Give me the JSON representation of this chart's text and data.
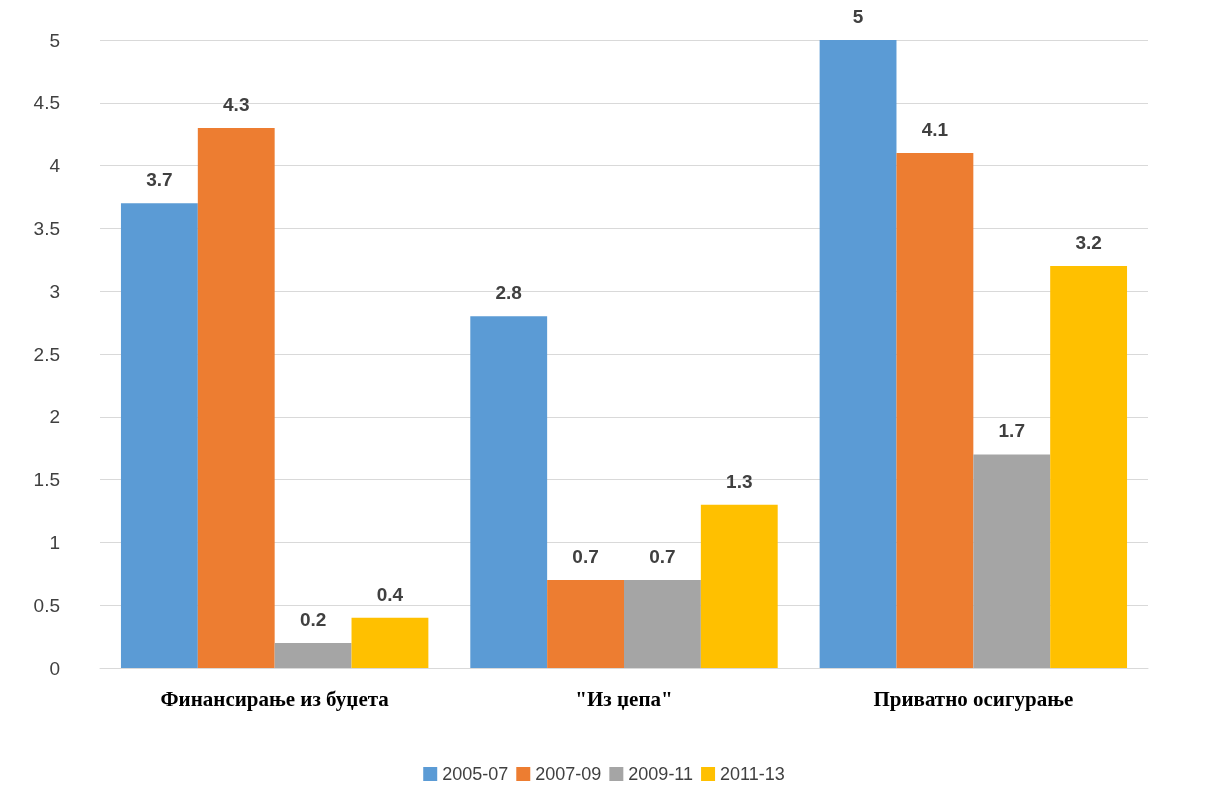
{
  "chart_data": {
    "type": "bar",
    "categories": [
      "Финансирање из буџета",
      "\"Из џепа\"",
      "Приватно осигурање"
    ],
    "series": [
      {
        "name": "2005-07",
        "color": "#5b9bd5",
        "values": [
          3.7,
          2.8,
          5
        ]
      },
      {
        "name": "2007-09",
        "color": "#ed7d31",
        "values": [
          4.3,
          0.7,
          4.1
        ]
      },
      {
        "name": "2009-11",
        "color": "#a5a5a5",
        "values": [
          0.2,
          0.7,
          1.7
        ]
      },
      {
        "name": "2011-13",
        "color": "#ffc000",
        "values": [
          0.4,
          1.3,
          3.2
        ]
      }
    ],
    "ylim": [
      0,
      5
    ],
    "yticks": [
      0,
      0.5,
      1,
      1.5,
      2,
      2.5,
      3,
      3.5,
      4,
      4.5,
      5
    ],
    "grid": "y",
    "legend": "bottom",
    "data_labels": true
  }
}
